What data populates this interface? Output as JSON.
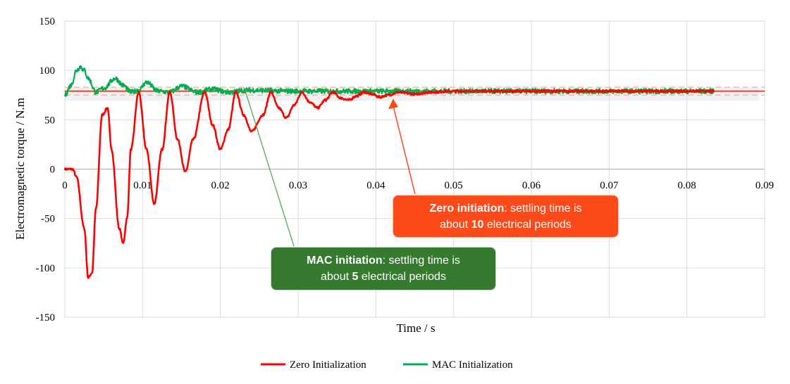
{
  "chart_data": {
    "type": "line",
    "xlabel": "Time / s",
    "ylabel": "Electromagnetic torque / N.m",
    "xlim": [
      0,
      0.09
    ],
    "ylim": [
      -150,
      150
    ],
    "xticks": [
      0,
      0.01,
      0.02,
      0.03,
      0.04,
      0.05,
      0.06,
      0.07,
      0.08,
      0.09
    ],
    "xtick_labels": [
      "0",
      "0.01",
      "0.02",
      "0.03",
      "0.04",
      "0.05",
      "0.06",
      "0.07",
      "0.08",
      "0.09"
    ],
    "yticks": [
      150,
      100,
      50,
      0,
      -50,
      -100,
      -150
    ],
    "ytick_labels": [
      "150",
      "100",
      "50",
      "0",
      "-50",
      "-100",
      "-150"
    ],
    "grid": true,
    "legend_position": "bottom",
    "reference": {
      "value": 79,
      "band": [
        75,
        83
      ],
      "color": "#e8442a"
    },
    "series": [
      {
        "name": "Zero Initialization",
        "color": "#ff0000",
        "x": [
          0,
          0.001,
          0.0015,
          0.0025,
          0.003,
          0.0035,
          0.004,
          0.0048,
          0.0055,
          0.006,
          0.007,
          0.0075,
          0.008,
          0.0085,
          0.0095,
          0.0105,
          0.0115,
          0.0125,
          0.0135,
          0.0145,
          0.0155,
          0.0165,
          0.018,
          0.019,
          0.02,
          0.021,
          0.022,
          0.023,
          0.024,
          0.0255,
          0.0265,
          0.0275,
          0.0285,
          0.0295,
          0.0305,
          0.0315,
          0.0325,
          0.0335,
          0.0345,
          0.0355,
          0.0365,
          0.0375,
          0.0385,
          0.0395,
          0.0405,
          0.0415,
          0.043,
          0.045,
          0.047,
          0.05,
          0.06,
          0.07,
          0.08,
          0.0835
        ],
        "y": [
          0,
          0,
          -8,
          -60,
          -110,
          -105,
          -40,
          55,
          62,
          20,
          -60,
          -75,
          -50,
          20,
          78,
          20,
          -35,
          20,
          78,
          30,
          -3,
          30,
          78,
          45,
          20,
          40,
          78,
          55,
          38,
          55,
          78,
          62,
          52,
          65,
          78,
          68,
          62,
          70,
          78,
          72,
          70,
          74,
          78,
          76,
          73,
          75,
          78,
          76,
          78,
          79,
          79,
          79,
          79,
          79
        ]
      },
      {
        "name": "MAC Initialization",
        "color": "#00b050",
        "x": [
          0,
          0.0008,
          0.0015,
          0.002,
          0.0025,
          0.003,
          0.004,
          0.005,
          0.0065,
          0.0075,
          0.0085,
          0.0095,
          0.0105,
          0.012,
          0.0135,
          0.015,
          0.017,
          0.019,
          0.021,
          0.0235,
          0.03,
          0.04,
          0.05,
          0.06,
          0.07,
          0.08,
          0.0835
        ],
        "y": [
          75,
          85,
          100,
          104,
          100,
          92,
          78,
          82,
          92,
          85,
          78,
          80,
          88,
          79,
          78,
          84,
          78,
          81,
          78,
          80,
          79,
          79,
          79,
          79,
          79,
          79,
          79
        ]
      }
    ],
    "annotations": [
      {
        "bold": "Zero initiation",
        "text": ": settling time is",
        "line2_pre": "about ",
        "line2_bold": "10",
        "line2_post": " electrical periods",
        "color": "#fc4a1a",
        "points_to": [
          0.0415,
          75
        ]
      },
      {
        "bold": "MAC initiation",
        "text": ": settling time is",
        "line2_pre": "about ",
        "line2_bold": "5",
        "line2_post": " electrical periods",
        "color": "#367a30",
        "points_to": [
          0.0235,
          80
        ]
      }
    ]
  }
}
